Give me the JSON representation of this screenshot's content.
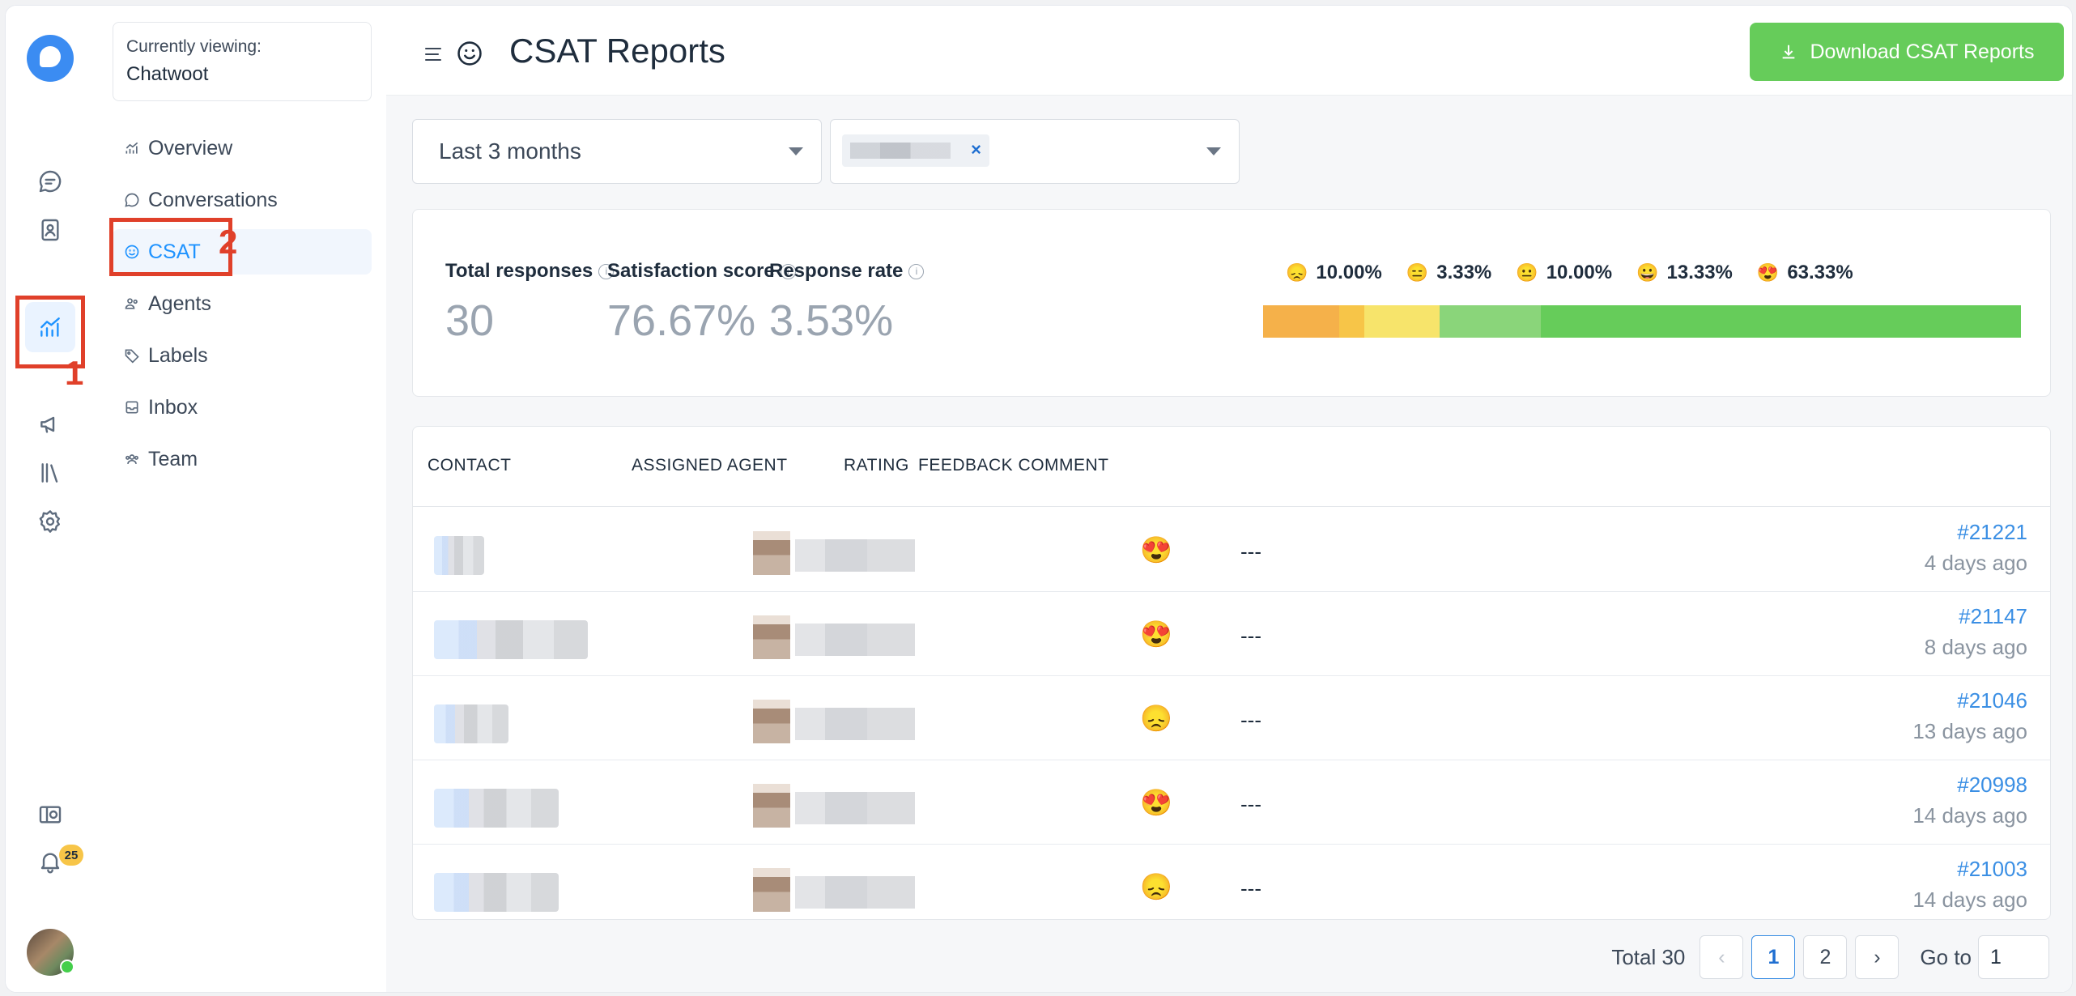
{
  "sidebar": {
    "currently_viewing_label": "Currently viewing:",
    "account_name": "Chatwoot",
    "nav": [
      {
        "label": "Overview",
        "icon": "chart-icon"
      },
      {
        "label": "Conversations",
        "icon": "chat-icon"
      },
      {
        "label": "CSAT",
        "icon": "smile-icon"
      },
      {
        "label": "Agents",
        "icon": "people-icon"
      },
      {
        "label": "Labels",
        "icon": "tag-icon"
      },
      {
        "label": "Inbox",
        "icon": "inbox-icon"
      },
      {
        "label": "Team",
        "icon": "team-icon"
      }
    ],
    "active": "CSAT",
    "notification_count": "25"
  },
  "annotations": {
    "step1": "1",
    "step2": "2"
  },
  "header": {
    "title": "CSAT Reports",
    "download_label": "Download CSAT Reports"
  },
  "filters": {
    "date_range": "Last 3 months",
    "agent_chip_remove": "×"
  },
  "metrics": [
    {
      "label": "Total responses",
      "value": "30"
    },
    {
      "label": "Satisfaction score",
      "value": "76.67%"
    },
    {
      "label": "Response rate",
      "value": "3.53%"
    }
  ],
  "distribution": [
    {
      "emoji": "😞",
      "label": "10.00%",
      "percent": 10.0,
      "color": "#f5b14a"
    },
    {
      "emoji": "😑",
      "label": "3.33%",
      "percent": 3.33,
      "color": "#f7c548"
    },
    {
      "emoji": "😐",
      "label": "10.00%",
      "percent": 10.0,
      "color": "#f7e46b"
    },
    {
      "emoji": "😀",
      "label": "13.33%",
      "percent": 13.33,
      "color": "#8ad57a"
    },
    {
      "emoji": "😍",
      "label": "63.33%",
      "percent": 63.33,
      "color": "#66cc5a"
    }
  ],
  "table": {
    "columns": [
      "CONTACT",
      "ASSIGNED AGENT",
      "RATING",
      "FEEDBACK COMMENT"
    ],
    "rows": [
      {
        "rating": "😍",
        "comment": "---",
        "id": "#21221",
        "time": "4 days ago"
      },
      {
        "rating": "😍",
        "comment": "---",
        "id": "#21147",
        "time": "8 days ago"
      },
      {
        "rating": "😞",
        "comment": "---",
        "id": "#21046",
        "time": "13 days ago"
      },
      {
        "rating": "😍",
        "comment": "---",
        "id": "#20998",
        "time": "14 days ago"
      },
      {
        "rating": "😞",
        "comment": "---",
        "id": "#21003",
        "time": "14 days ago"
      }
    ]
  },
  "pagination": {
    "total_label": "Total 30",
    "pages": [
      "1",
      "2"
    ],
    "current": "1",
    "goto_label": "Go to",
    "goto_value": "1"
  }
}
